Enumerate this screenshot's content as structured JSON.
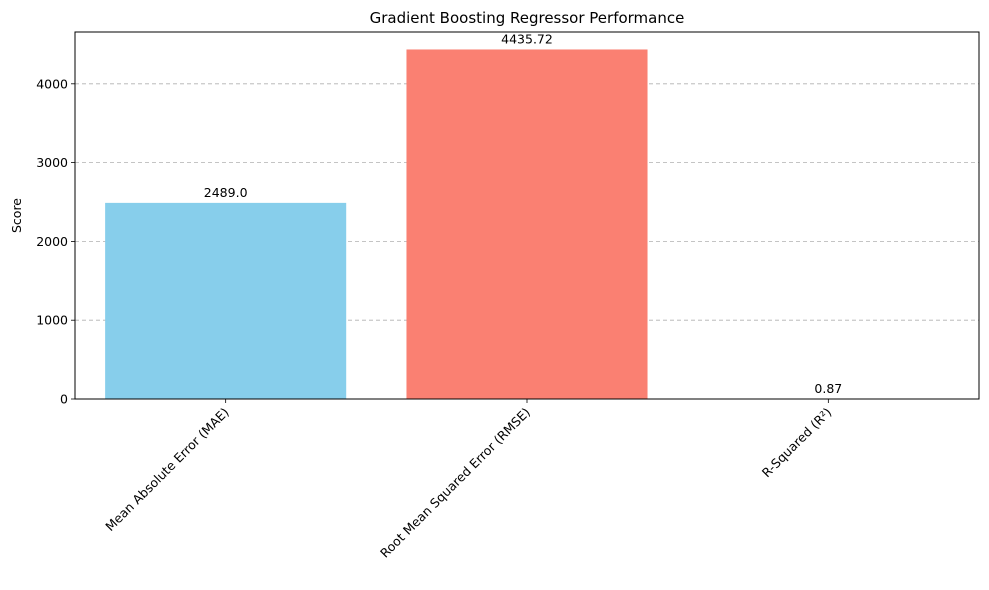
{
  "chart_data": {
    "type": "bar",
    "title": "Gradient Boosting Regressor Performance",
    "xlabel": "",
    "ylabel": "Score",
    "categories": [
      "Mean Absolute Error (MAE)",
      "Root Mean Squared Error (RMSE)",
      "R-Squared (R²)"
    ],
    "values": [
      2489.0,
      4435.72,
      0.87
    ],
    "data_labels": [
      "2489.0",
      "4435.72",
      "0.87"
    ],
    "colors": [
      "#87ceeb",
      "#fa8072",
      "#90ee90"
    ],
    "ylim": [
      0,
      4657.5
    ],
    "yticks": [
      0,
      1000,
      2000,
      3000,
      4000
    ],
    "ytick_labels": [
      "0",
      "1000",
      "2000",
      "3000",
      "4000"
    ],
    "grid": "y-dashed",
    "legend": "none"
  }
}
